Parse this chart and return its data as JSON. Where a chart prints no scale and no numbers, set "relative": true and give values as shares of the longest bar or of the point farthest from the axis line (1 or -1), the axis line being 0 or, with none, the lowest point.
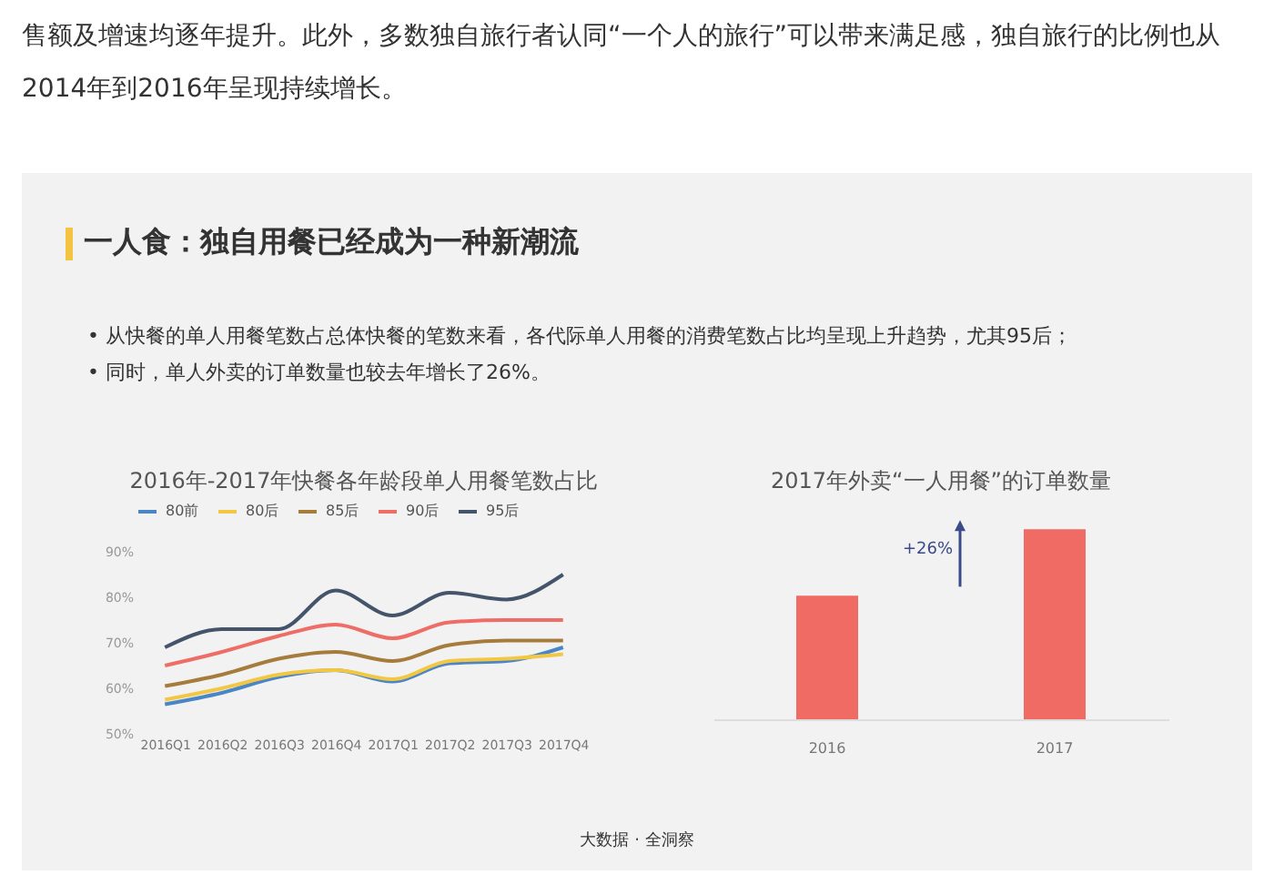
{
  "chart_data": [
    {
      "type": "other",
      "title": "一人食：独自用餐已经成为一种新潮流",
      "annotations": [
        "售额及增速均逐年提升。此外，多数独自旅行者认同“一个人的旅行”可以带来满足感，独自旅行的比例也从2014年到2016年呈现持续增长。",
        "•  从快餐的单人用餐笔数占总体快餐的笔数来看，各代际单人用餐的消费笔数占比均呈现上升趋势，尤其95后；",
        "•  同时，单人外卖的订单数量也较去年增长了26%。",
        "大数据 · 全洞察"
      ]
    },
    {
      "type": "line",
      "title": "2016年-2017年快餐各年龄段单人用餐笔数占比",
      "categories": [
        "2016Q1",
        "2016Q2",
        "2016Q3",
        "2016Q4",
        "2017Q1",
        "2017Q2",
        "2017Q3",
        "2017Q4"
      ],
      "ylim": [
        50,
        90
      ],
      "yticks": [
        {
          "value": 50,
          "label": "50%"
        },
        {
          "value": 60,
          "label": "60%"
        },
        {
          "value": 70,
          "label": "70%"
        },
        {
          "value": 80,
          "label": "80%"
        },
        {
          "value": 90,
          "label": "90%"
        }
      ],
      "grid": false,
      "legend": "top",
      "marker": "none",
      "series": [
        {
          "name": "80前",
          "color": "#4a86c5",
          "values": [
            56.5,
            59,
            62.5,
            64,
            61.5,
            65.5,
            66,
            69
          ]
        },
        {
          "name": "80后",
          "color": "#f2c744",
          "values": [
            57.5,
            60,
            63,
            64,
            62,
            66,
            66.5,
            67.5
          ]
        },
        {
          "name": "85后",
          "color": "#a67c3d",
          "values": [
            60.5,
            63,
            66.5,
            68,
            66,
            69.5,
            70.5,
            70.5
          ]
        },
        {
          "name": "90后",
          "color": "#ef6d67",
          "values": [
            65,
            68,
            71.5,
            74,
            71,
            74.5,
            75,
            75
          ]
        },
        {
          "name": "95后",
          "color": "#44546a",
          "values": [
            69,
            73,
            73,
            81.5,
            76,
            81,
            79.5,
            85
          ]
        }
      ]
    },
    {
      "type": "bar",
      "title": "2017年外卖“一人用餐”的订单数量",
      "categories": [
        "2016",
        "2017"
      ],
      "values": [
        0.65,
        1
      ],
      "color": "#ef6b63",
      "relative": true,
      "annotations": [
        "+26%"
      ]
    }
  ]
}
